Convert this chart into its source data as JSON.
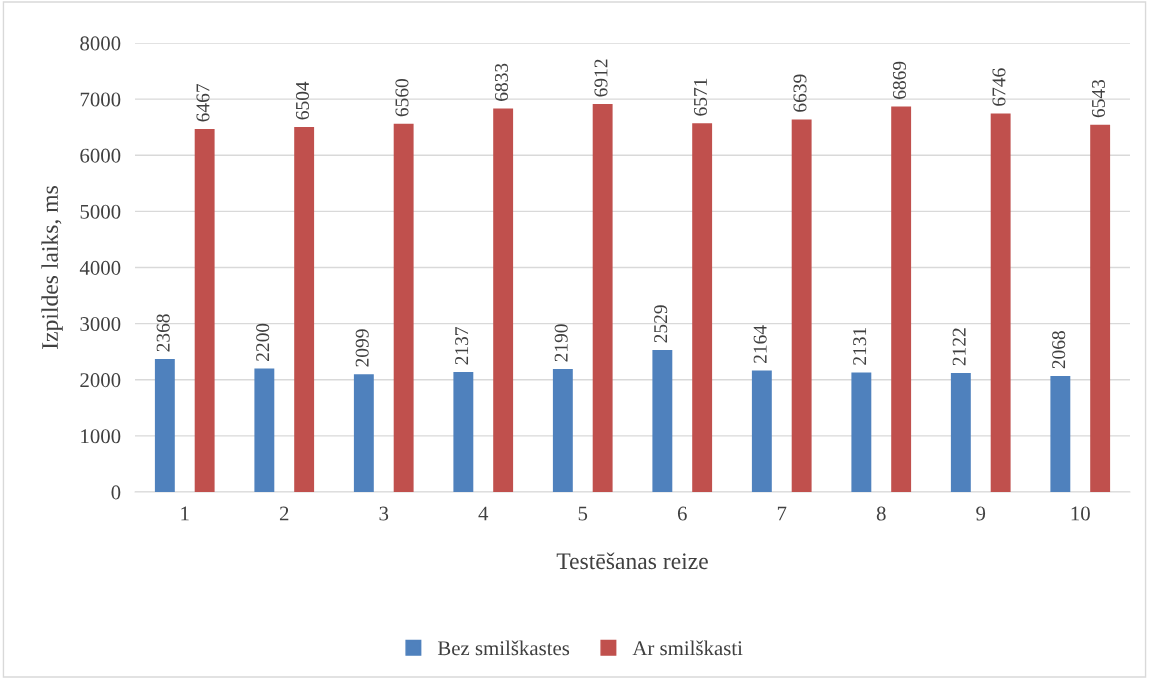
{
  "chart_data": {
    "type": "bar",
    "xlabel": "Testēšanas reize",
    "ylabel": "Izpildes laiks, ms",
    "categories": [
      "1",
      "2",
      "3",
      "4",
      "5",
      "6",
      "7",
      "8",
      "9",
      "10"
    ],
    "series": [
      {
        "name": "Bez smilškastes",
        "color": "#4f81bd",
        "values": [
          2368,
          2200,
          2099,
          2137,
          2190,
          2529,
          2164,
          2131,
          2122,
          2068
        ]
      },
      {
        "name": "Ar smilškasti",
        "color": "#c0504d",
        "values": [
          6467,
          6504,
          6560,
          6833,
          6912,
          6571,
          6639,
          6869,
          6746,
          6543
        ]
      }
    ],
    "ylim": [
      0,
      8000
    ],
    "yticks": [
      0,
      1000,
      2000,
      3000,
      4000,
      5000,
      6000,
      7000,
      8000
    ],
    "grid": "y",
    "legend": "bottom",
    "data_labels": true
  }
}
